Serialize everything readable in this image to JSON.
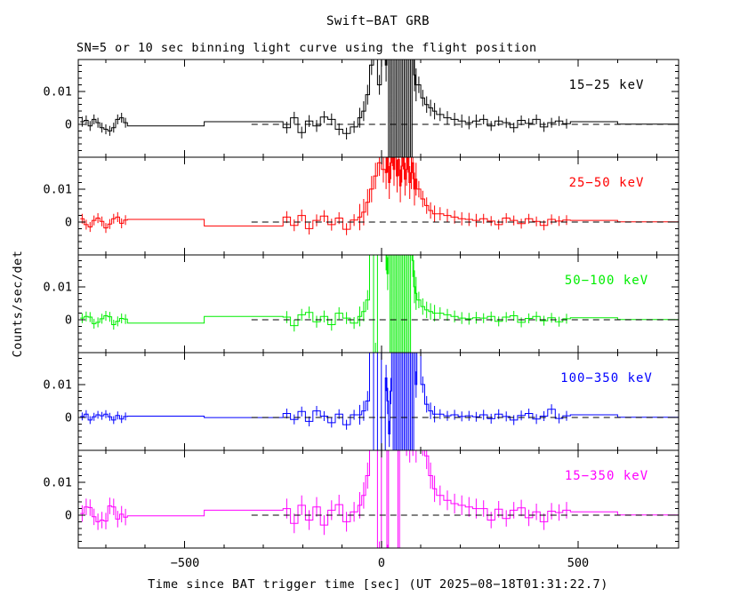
{
  "chart_data": {
    "type": "line",
    "title": "Swift−BAT GRB",
    "subtitle": "SN=5 or 10 sec binning light curve using the flight position",
    "xlabel": "Time since BAT trigger time [sec] (UT 2025−08−18T01:31:22.7)",
    "ylabel": "Counts/sec/det",
    "value_unit": "1e-3 counts/sec/det",
    "xlim": [
      -770,
      755
    ],
    "ylim_per_panel": [
      -0.01,
      0.0197
    ],
    "x_axis": {
      "major": [
        {
          "v": -500,
          "label": "−500"
        },
        {
          "v": 0,
          "label": "0"
        },
        {
          "v": 500,
          "label": "500"
        }
      ],
      "minor_step": 100
    },
    "y_axis": {
      "major": [
        {
          "v": 0.01,
          "label": "0.01"
        },
        {
          "v": 0,
          "label": "0"
        }
      ],
      "minor_step": 0.002
    },
    "zero_line": {
      "style": "dashed",
      "from": -330,
      "to": 755,
      "color": "#000000"
    },
    "segment_times": [
      [
        -765,
        -645
      ],
      [
        -645,
        -450
      ],
      [
        -450,
        -250
      ],
      [
        -250,
        -60
      ],
      [
        -60,
        10
      ],
      [
        10,
        90
      ],
      [
        90,
        140
      ],
      [
        140,
        250
      ],
      [
        250,
        480
      ],
      [
        480,
        600
      ],
      [
        600,
        755
      ]
    ],
    "panels": [
      {
        "label": "15−25 keV",
        "color": "#000000",
        "segments": [
          {
            "v": [
              0.8,
              1.2,
              -0.5,
              1.5,
              0.5,
              -1.0,
              -1.5,
              -2.0,
              -1.0,
              1.5,
              2.0,
              0.5
            ],
            "e": 1.5
          },
          {
            "v": [
              -0.5
            ],
            "e": 0
          },
          {
            "v": [
              0.8
            ],
            "e": 0
          },
          {
            "v": [
              -1.0,
              2.0,
              -2.5,
              1.0,
              -0.5,
              2.2,
              1.5,
              -1.5,
              -2.8,
              -0.8
            ],
            "e": 1.8
          },
          {
            "v": [
              2.0,
              4.0,
              9.0,
              18,
              30,
              12,
              25
            ],
            "e": 3
          },
          {
            "v": [
              18,
              50,
              -20,
              48,
              -18,
              52,
              -22,
              46,
              -16,
              50,
              -20,
              45,
              -19,
              51,
              -17,
              49,
              -21,
              25,
              15,
              12
            ],
            "e": 5
          },
          {
            "v": [
              12,
              8,
              6,
              5,
              4
            ],
            "e": 2.5
          },
          {
            "v": [
              3,
              2,
              1.5,
              1,
              0.5,
              1
            ],
            "e": 2
          },
          {
            "v": [
              1.5,
              -0.5,
              1.0,
              0.5,
              -1.0,
              1.2,
              0.3,
              1.5,
              -0.8,
              0.5,
              1.0,
              0.2
            ],
            "e": 1.5
          },
          {
            "v": [
              0.8
            ],
            "e": 0
          },
          {
            "v": [
              0.05
            ],
            "e": 0
          }
        ]
      },
      {
        "label": "25−50 keV",
        "color": "#ff0000",
        "segments": [
          {
            "v": [
              1.0,
              -0.8,
              -1.5,
              0.5,
              1.2,
              0.2,
              -1.8,
              -0.6,
              1.0,
              1.5,
              -0.4,
              0.6
            ],
            "e": 1.5
          },
          {
            "v": [
              0.8
            ],
            "e": 0
          },
          {
            "v": [
              -1.2
            ],
            "e": 0
          },
          {
            "v": [
              1.5,
              -1.0,
              2.0,
              -2.0,
              0.5,
              1.8,
              -0.8,
              1.2,
              -2.2,
              0.6
            ],
            "e": 1.8
          },
          {
            "v": [
              1.5,
              3.0,
              6.0,
              10,
              14,
              18,
              16
            ],
            "e": 4
          },
          {
            "v": [
              15,
              20,
              12,
              18,
              22,
              16,
              25,
              14,
              19,
              11,
              17,
              21,
              13,
              16,
              20,
              12,
              15,
              18,
              10,
              13
            ],
            "e": 5
          },
          {
            "v": [
              10,
              7,
              5,
              3.5,
              2.5
            ],
            "e": 2.5
          },
          {
            "v": [
              2.5,
              2.0,
              1.5,
              1.0,
              0.8,
              0.5
            ],
            "e": 2
          },
          {
            "v": [
              1.0,
              0.3,
              -0.8,
              1.2,
              0.5,
              -0.5,
              1.0,
              0.2,
              -1.0,
              0.8,
              0.3,
              0.6
            ],
            "e": 1.5
          },
          {
            "v": [
              0.5
            ],
            "e": 0
          },
          {
            "v": [
              0.05
            ],
            "e": 0
          }
        ]
      },
      {
        "label": "50−100 keV",
        "color": "#00ee00",
        "segments": [
          {
            "v": [
              0.5,
              1.0,
              0.8,
              -1.2,
              -0.8,
              0.3,
              1.2,
              0.9,
              -1.5,
              -0.5,
              0.4,
              0.2
            ],
            "e": 1.5
          },
          {
            "v": [
              -1.0
            ],
            "e": 0
          },
          {
            "v": [
              1.0
            ],
            "e": 0
          },
          {
            "v": [
              0.8,
              -1.8,
              1.5,
              2.2,
              -0.6,
              1.0,
              -1.5,
              2.0,
              0.5,
              -1.0
            ],
            "e": 1.8
          },
          {
            "v": [
              1.0,
              2.5,
              6.0,
              30,
              -10,
              35,
              28
            ],
            "e": 3
          },
          {
            "v": [
              20,
              14,
              45,
              -25,
              50,
              -28,
              46,
              -24,
              52,
              -26,
              48,
              -22,
              50,
              -25,
              45,
              -27,
              49,
              18,
              10,
              8
            ],
            "e": 5
          },
          {
            "v": [
              6,
              4,
              3,
              2.5,
              2
            ],
            "e": 2.5
          },
          {
            "v": [
              2,
              1.5,
              1,
              0.5,
              0.3,
              0.6
            ],
            "e": 1.8
          },
          {
            "v": [
              0.5,
              1.0,
              -0.5,
              0.8,
              1.2,
              -0.8,
              0.4,
              1.0,
              -0.3,
              0.6,
              -0.6,
              0.3
            ],
            "e": 1.5
          },
          {
            "v": [
              0.6
            ],
            "e": 0
          },
          {
            "v": [
              0.05
            ],
            "e": 0
          }
        ]
      },
      {
        "label": "100−350 keV",
        "color": "#0000ff",
        "segments": [
          {
            "v": [
              0.3,
              1.0,
              -0.8,
              0.2,
              0.8,
              0.5,
              1.0,
              0.2,
              -0.8,
              0.6,
              -0.5,
              0.3
            ],
            "e": 1.2
          },
          {
            "v": [
              0.4
            ],
            "e": 0
          },
          {
            "v": [
              -0.05
            ],
            "e": 0
          },
          {
            "v": [
              1.2,
              -0.6,
              1.8,
              -1.2,
              2.0,
              0.4,
              -1.6,
              1.0,
              -2.2,
              0.8
            ],
            "e": 1.5
          },
          {
            "v": [
              0.8,
              2.0,
              5.0,
              40,
              -15,
              45,
              -18
            ],
            "e": 3
          },
          {
            "v": [
              12,
              5,
              -5,
              8,
              50,
              -20,
              48,
              -22,
              52,
              -18,
              50,
              -20,
              46,
              -21,
              49,
              -19,
              47,
              -23,
              30,
              10
            ],
            "e": 4
          },
          {
            "v": [
              30,
              10,
              4,
              2,
              1
            ],
            "e": 2.5
          },
          {
            "v": [
              1.0,
              0.5,
              0.8,
              0.3,
              0.5,
              0.2
            ],
            "e": 1.5
          },
          {
            "v": [
              0.8,
              -0.4,
              1.0,
              0.3,
              -0.8,
              0.6,
              1.2,
              -0.5,
              0.4,
              2.5,
              -0.3,
              0.5
            ],
            "e": 1.5
          },
          {
            "v": [
              0.8
            ],
            "e": 0
          },
          {
            "v": [
              0.05
            ],
            "e": 0
          }
        ]
      },
      {
        "label": "15−350 keV",
        "color": "#ff00ff",
        "segments": [
          {
            "v": [
              0.5,
              2.5,
              2.3,
              -0.5,
              -2.0,
              -1.5,
              -1.8,
              2.8,
              2.5,
              -1.2,
              0.3,
              -0.6
            ],
            "e": 2.5
          },
          {
            "v": [
              -0.2
            ],
            "e": 0
          },
          {
            "v": [
              1.5
            ],
            "e": 0
          },
          {
            "v": [
              2.0,
              -2.5,
              3.0,
              -1.5,
              2.5,
              -3.0,
              1.5,
              3.2,
              -2.0,
              1.0
            ],
            "e": 3
          },
          {
            "v": [
              3.0,
              6.0,
              12,
              25,
              38,
              -12,
              40
            ],
            "e": 4
          },
          {
            "v": [
              45,
              -15,
              40,
              35,
              30,
              32,
              28,
              42,
              -18,
              38,
              30,
              26,
              28,
              24,
              26,
              22,
              28,
              24,
              26,
              22
            ],
            "e": 6
          },
          {
            "v": [
              25,
              22,
              18,
              12,
              8
            ],
            "e": 4
          },
          {
            "v": [
              6,
              4.5,
              3.5,
              3,
              2.5,
              2
            ],
            "e": 3
          },
          {
            "v": [
              2.0,
              -1.5,
              1.8,
              -1.0,
              1.5,
              2.2,
              -0.8,
              1.0,
              -2.0,
              1.2,
              0.8,
              1.5
            ],
            "e": 2.5
          },
          {
            "v": [
              1.0
            ],
            "e": 0
          },
          {
            "v": [
              0.05
            ],
            "e": 0
          }
        ]
      }
    ]
  }
}
